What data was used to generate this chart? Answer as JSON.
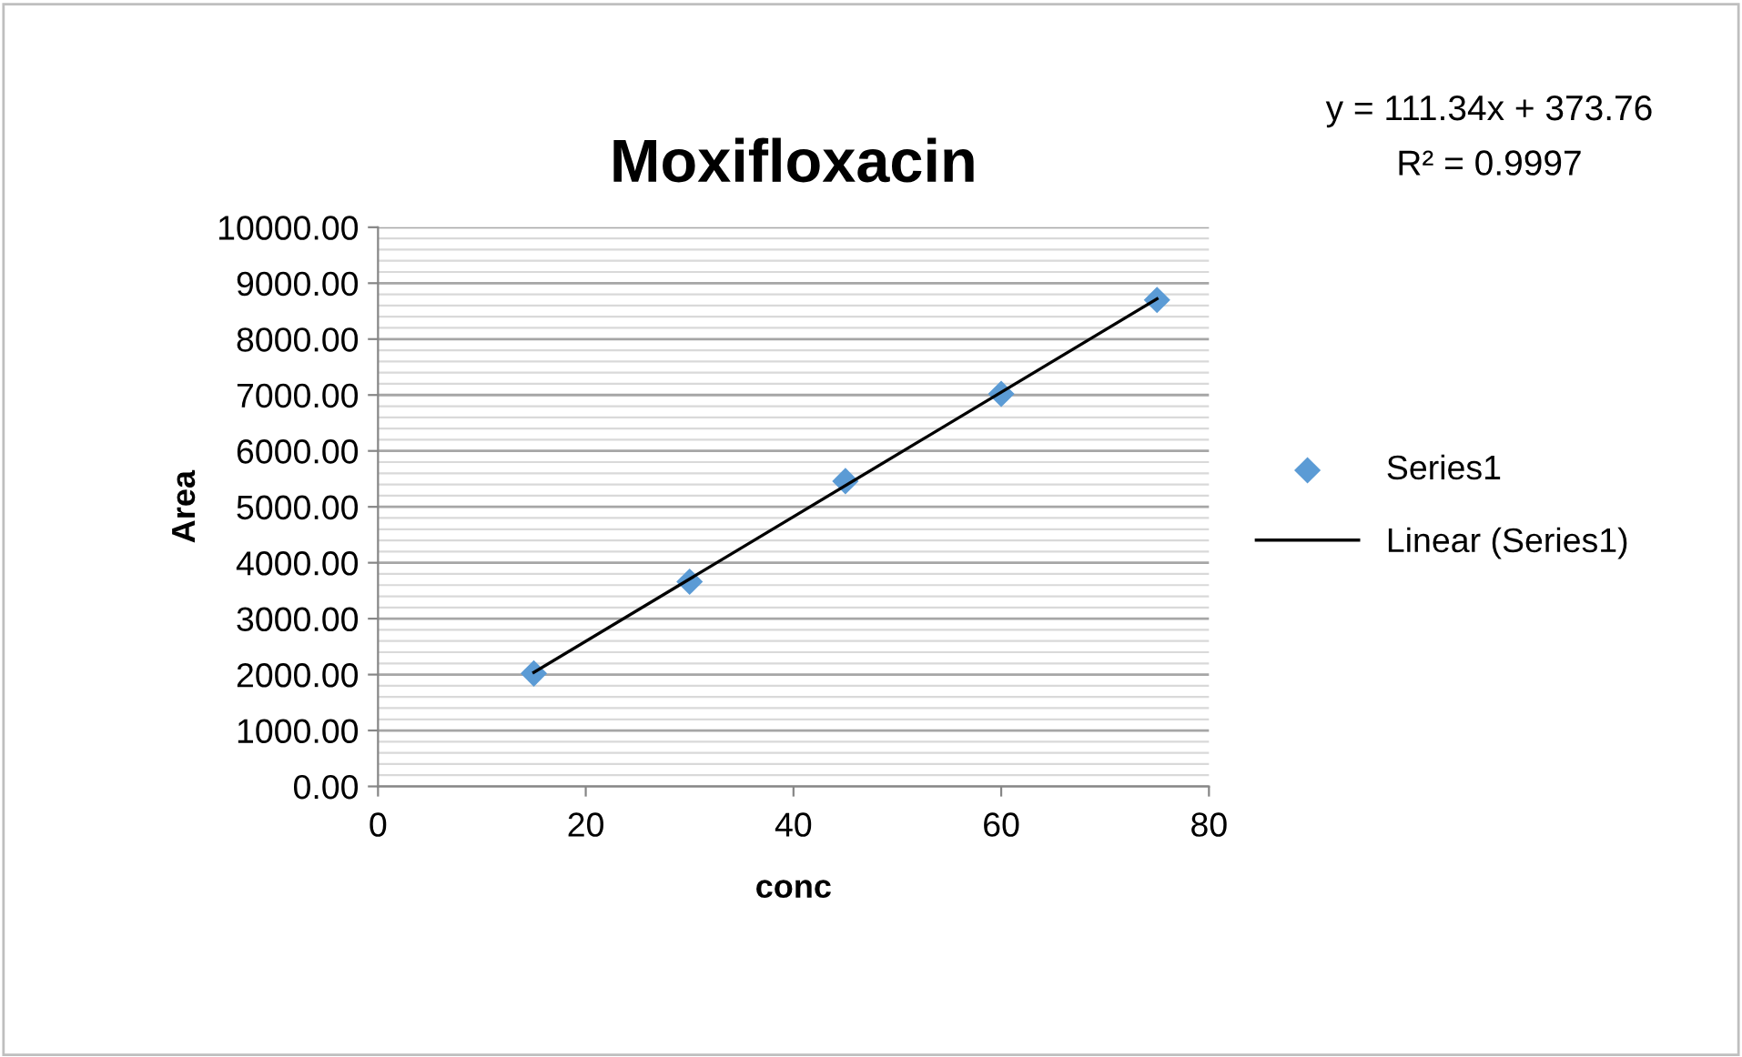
{
  "chart_data": {
    "type": "scatter",
    "title": "Moxifloxacin",
    "xlabel": "conc",
    "ylabel": "Area",
    "x": [
      15,
      30,
      45,
      60,
      75
    ],
    "series": [
      {
        "name": "Series1",
        "color": "#5b9bd5",
        "marker": "diamond",
        "values": [
          2020,
          3660,
          5460,
          7020,
          8700
        ]
      },
      {
        "name": "Linear (Series1)",
        "type": "line",
        "color": "#000000",
        "marker": "none",
        "line_style": "solid",
        "x": [
          15,
          75
        ],
        "values": [
          2040,
          8720
        ]
      }
    ],
    "annotations": [
      "y = 111.34x + 373.76",
      "R² = 0.9997"
    ],
    "xlim": [
      0,
      80
    ],
    "xticks": [
      0,
      20,
      40,
      60,
      80
    ],
    "ylim": [
      0,
      10000
    ],
    "yticks": [
      {
        "value": 0,
        "label": "0.00"
      },
      {
        "value": 1000,
        "label": "1000.00"
      },
      {
        "value": 2000,
        "label": "2000.00"
      },
      {
        "value": 3000,
        "label": "3000.00"
      },
      {
        "value": 4000,
        "label": "4000.00"
      },
      {
        "value": 5000,
        "label": "5000.00"
      },
      {
        "value": 6000,
        "label": "6000.00"
      },
      {
        "value": 7000,
        "label": "7000.00"
      },
      {
        "value": 8000,
        "label": "8000.00"
      },
      {
        "value": 9000,
        "label": "9000.00"
      },
      {
        "value": 10000,
        "label": "10000.00"
      }
    ],
    "grid": "y",
    "legend": "right"
  }
}
